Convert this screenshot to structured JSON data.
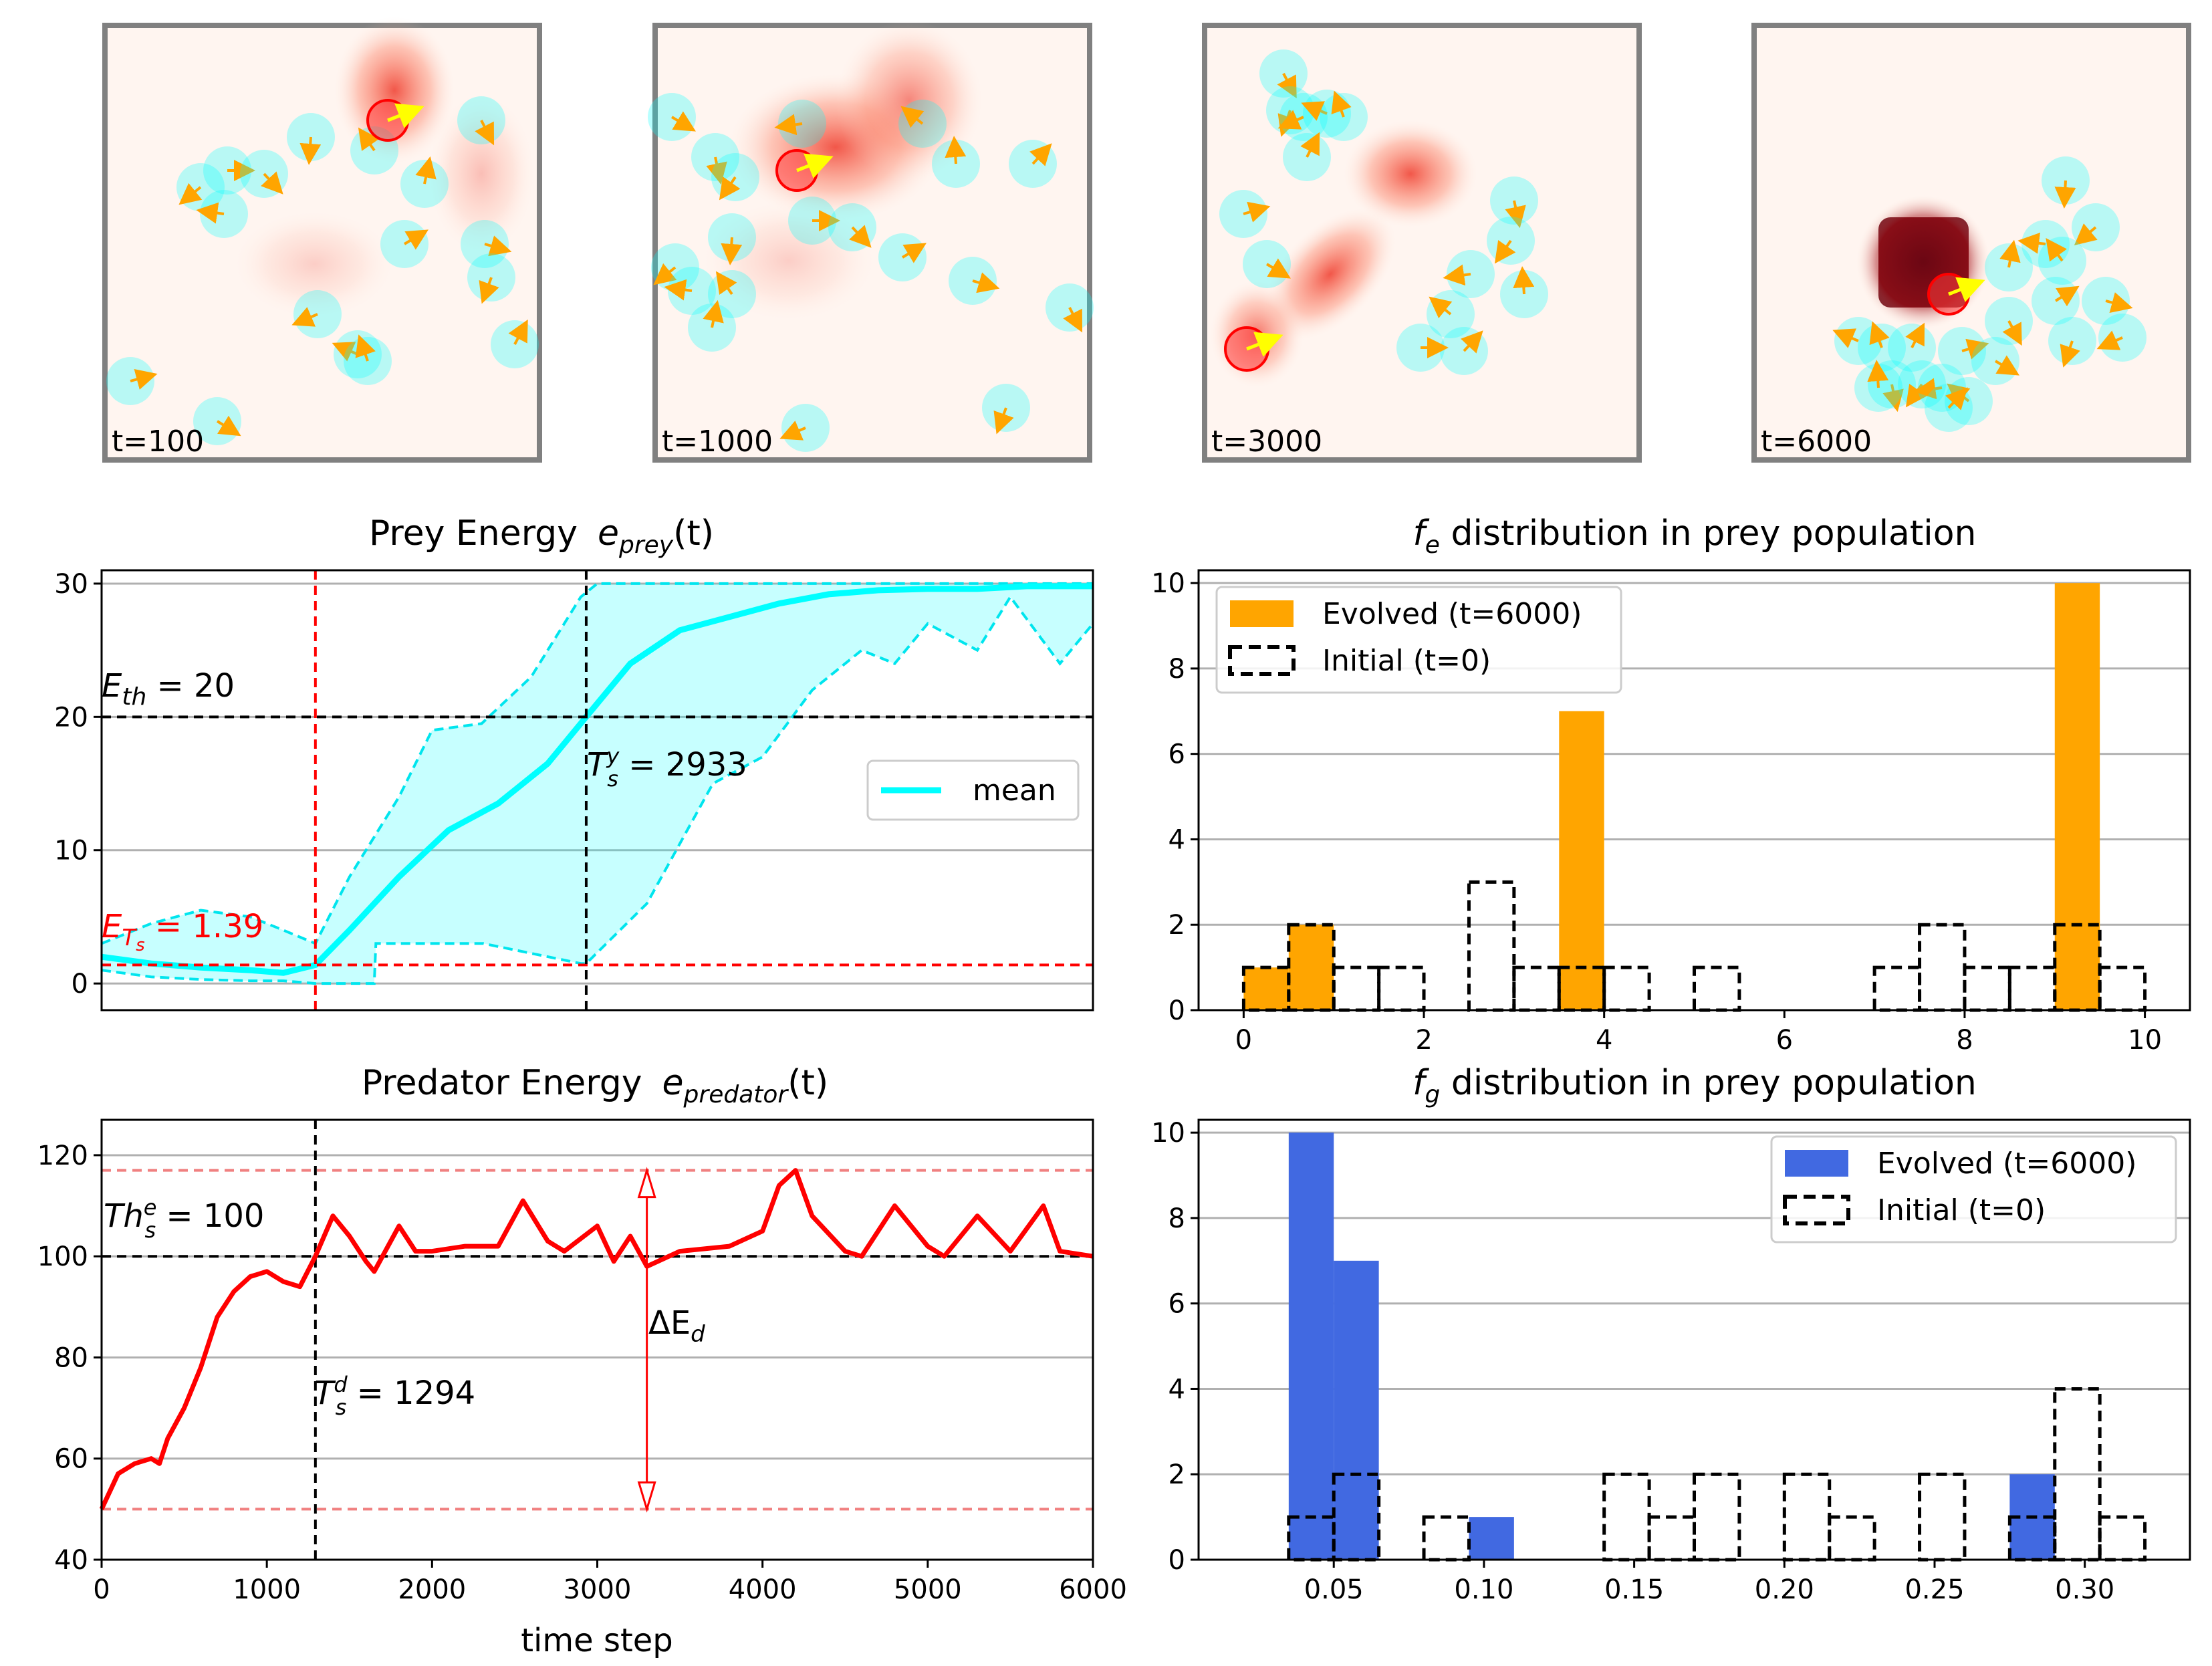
{
  "snapshots": [
    {
      "label": "t=100"
    },
    {
      "label": "t=1000"
    },
    {
      "label": "t=3000"
    },
    {
      "label": "t=6000"
    }
  ],
  "colors": {
    "prey": "#7fffff",
    "predator": "#ff3c3c",
    "arrow": "#ffa500",
    "orange": "#ffa500",
    "blue": "#4169e1",
    "cyan": "#00ffff"
  },
  "prey_chart": {
    "title_main": "Prey Energy",
    "title_var": "e",
    "title_sub": "prey",
    "title_arg": "(t)",
    "eth_label": "E",
    "eth_sub": "th",
    "eth_value": " = 20",
    "ets_label": "E",
    "ets_sub": "T",
    "ets_subsub": "s",
    "ets_value": " = 1.39",
    "ts_label": "T",
    "ts_sup": "y",
    "ts_sub": "s",
    "ts_value": " = 2933",
    "legend_mean": "mean"
  },
  "pred_chart": {
    "title_main": "Predator Energy",
    "title_var": "e",
    "title_sub": "predator",
    "title_arg": "(t)",
    "th_label": "Th",
    "th_sup": "e",
    "th_sub": "s",
    "th_value": " = 100",
    "td_label": "T",
    "td_sup": "d",
    "td_sub": "s",
    "td_value": " = 1294",
    "delta_label": "ΔE",
    "delta_sub": "d",
    "xlabel": "time step"
  },
  "fe_chart": {
    "title_var": "f",
    "title_sub": "e",
    "title_rest": " distribution in prey population",
    "legend_evolved": "Evolved (t=6000)",
    "legend_initial": "Initial (t=0)"
  },
  "fg_chart": {
    "title_var": "f",
    "title_sub": "g",
    "title_rest": " distribution in prey population",
    "legend_evolved": "Evolved (t=6000)",
    "legend_initial": "Initial (t=0)"
  },
  "chart_data": [
    {
      "id": "prey",
      "type": "line",
      "title": "Prey Energy e_prey(t)",
      "xlim": [
        0,
        6000
      ],
      "ylim": [
        -2,
        31
      ],
      "yticks": [
        0,
        10,
        20,
        30
      ],
      "hlines": [
        {
          "y": 20,
          "label": "E_th = 20"
        },
        {
          "y": 1.39,
          "label": "E_Ts = 1.39"
        }
      ],
      "vlines": [
        {
          "x": 1294
        },
        {
          "x": 2933,
          "label": "T_s^y = 2933"
        }
      ],
      "mean": {
        "x": [
          0,
          300,
          600,
          900,
          1100,
          1294,
          1500,
          1800,
          2100,
          2400,
          2700,
          2933,
          3200,
          3500,
          3800,
          4100,
          4400,
          4700,
          5000,
          5300,
          5600,
          6000
        ],
        "y": [
          2,
          1.5,
          1.2,
          1,
          0.8,
          1.39,
          4,
          8,
          11.5,
          13.5,
          16.5,
          20,
          24,
          26.5,
          27.5,
          28.5,
          29.2,
          29.5,
          29.6,
          29.6,
          29.8,
          29.8
        ]
      },
      "upper": {
        "x": [
          0,
          300,
          600,
          900,
          1100,
          1294,
          1500,
          1800,
          2000,
          2300,
          2600,
          2900,
          3000,
          3500,
          4000,
          4500,
          5000,
          5500,
          6000
        ],
        "y": [
          3,
          4.5,
          5.5,
          5,
          4,
          3,
          8,
          14,
          19,
          19.5,
          23,
          29,
          30,
          30,
          30,
          30,
          30,
          30,
          30
        ]
      },
      "lower": {
        "x": [
          0,
          300,
          600,
          900,
          1100,
          1294,
          1650,
          1660,
          2300,
          2310,
          2900,
          2933,
          3300,
          3700,
          4000,
          4300,
          4600,
          4800,
          5000,
          5300,
          5500,
          5800,
          6000
        ],
        "y": [
          1,
          0.5,
          0.3,
          0.2,
          0.2,
          0,
          0,
          3,
          3,
          3,
          1.5,
          1.5,
          6,
          15,
          17,
          22,
          25,
          24,
          27,
          25,
          29,
          24,
          27
        ]
      }
    },
    {
      "id": "predator",
      "type": "line",
      "title": "Predator Energy e_predator(t)",
      "xlabel": "time step",
      "xlim": [
        0,
        6000
      ],
      "ylim": [
        40,
        127
      ],
      "xticks": [
        0,
        1000,
        2000,
        3000,
        4000,
        5000,
        6000
      ],
      "yticks": [
        40,
        60,
        80,
        100,
        120
      ],
      "hlines": [
        {
          "y": 100,
          "label": "Th_s^e = 100"
        },
        {
          "y": 117
        },
        {
          "y": 50
        }
      ],
      "vlines": [
        {
          "x": 1294,
          "label": "T_s^d = 1294"
        }
      ],
      "annotation": {
        "x": 3300,
        "y_from": 50,
        "y_to": 117,
        "label": "ΔE_d"
      },
      "series": {
        "x": [
          0,
          100,
          200,
          300,
          350,
          400,
          500,
          600,
          700,
          800,
          900,
          1000,
          1100,
          1200,
          1294,
          1400,
          1500,
          1600,
          1650,
          1800,
          1900,
          2000,
          2200,
          2400,
          2550,
          2700,
          2800,
          3000,
          3100,
          3200,
          3300,
          3500,
          3800,
          4000,
          4100,
          4200,
          4300,
          4500,
          4600,
          4800,
          5000,
          5100,
          5300,
          5500,
          5700,
          5800,
          6000
        ],
        "y": [
          50,
          57,
          59,
          60,
          59,
          64,
          70,
          78,
          88,
          93,
          96,
          97,
          95,
          94,
          100,
          108,
          104,
          99,
          97,
          106,
          101,
          101,
          102,
          102,
          111,
          103,
          101,
          106,
          99,
          104,
          98,
          101,
          102,
          105,
          114,
          117,
          108,
          101,
          100,
          110,
          102,
          100,
          108,
          101,
          110,
          101,
          100
        ]
      }
    },
    {
      "id": "fe",
      "type": "bar",
      "title": "f_e distribution in prey population",
      "xlim": [
        -0.5,
        10.5
      ],
      "ylim": [
        0,
        10.3
      ],
      "xticks": [
        0,
        2,
        4,
        6,
        8,
        10
      ],
      "yticks": [
        0,
        2,
        4,
        6,
        8,
        10
      ],
      "bin_width": 0.5,
      "evolved": {
        "bin_starts": [
          0,
          0.5,
          3.5,
          9
        ],
        "counts": [
          1,
          2,
          7,
          10
        ]
      },
      "initial": {
        "bin_starts": [
          0,
          0.5,
          1,
          1.5,
          2.5,
          3,
          3.5,
          4,
          5,
          7,
          7.5,
          8,
          8.5,
          9,
          9.5
        ],
        "counts": [
          1,
          2,
          1,
          1,
          3,
          1,
          1,
          1,
          1,
          1,
          2,
          1,
          1,
          2,
          1
        ]
      }
    },
    {
      "id": "fg",
      "type": "bar",
      "title": "f_g distribution in prey population",
      "xlim": [
        0.005,
        0.335
      ],
      "ylim": [
        0,
        10.3
      ],
      "xticks": [
        0.05,
        0.1,
        0.15,
        0.2,
        0.25,
        0.3
      ],
      "xticklabels": [
        "0.05",
        "0.10",
        "0.15",
        "0.20",
        "0.25",
        "0.30"
      ],
      "yticks": [
        0,
        2,
        4,
        6,
        8,
        10
      ],
      "bin_width": 0.015,
      "evolved": {
        "bin_starts": [
          0.035,
          0.05,
          0.095,
          0.275
        ],
        "counts": [
          10,
          7,
          1,
          2
        ]
      },
      "initial": {
        "bin_starts": [
          0.035,
          0.05,
          0.08,
          0.14,
          0.155,
          0.17,
          0.2,
          0.215,
          0.245,
          0.275,
          0.29,
          0.305
        ],
        "counts": [
          1,
          2,
          1,
          2,
          1,
          2,
          2,
          1,
          2,
          1,
          4,
          1
        ]
      }
    }
  ]
}
